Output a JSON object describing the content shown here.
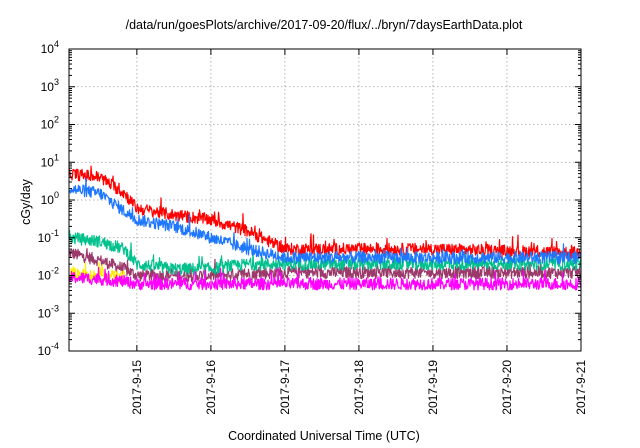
{
  "chart_data": {
    "type": "line",
    "title": "/data/run/goesPlots/archive/2017-09-20/flux/../bryn/7daysEarthData.plot",
    "xlabel": "Coordinated Universal Time (UTC)",
    "ylabel": "cGy/day",
    "y_scale": "log",
    "ylim": [
      0.0001,
      10000
    ],
    "xlim": [
      "2017-09-14T02:00",
      "2017-09-21T00:00"
    ],
    "y_ticks": [
      {
        "value": 0.0001,
        "base": "10",
        "exp": "-4"
      },
      {
        "value": 0.001,
        "base": "10",
        "exp": "-3"
      },
      {
        "value": 0.01,
        "base": "10",
        "exp": "-2"
      },
      {
        "value": 0.1,
        "base": "10",
        "exp": "-1"
      },
      {
        "value": 1,
        "base": "10",
        "exp": "0"
      },
      {
        "value": 10,
        "base": "10",
        "exp": "1"
      },
      {
        "value": 100,
        "base": "10",
        "exp": "2"
      },
      {
        "value": 1000,
        "base": "10",
        "exp": "3"
      },
      {
        "value": 10000,
        "base": "10",
        "exp": "4"
      }
    ],
    "x_ticks": [
      "2017-9-15",
      "2017-9-16",
      "2017-9-17",
      "2017-9-18",
      "2017-9-19",
      "2017-9-20",
      "2017-9-21"
    ],
    "grid": true,
    "legend": "none",
    "series": [
      {
        "color": "#ff0000",
        "x": [
          "2017-09-14T02:00",
          "2017-09-14T12:00",
          "2017-09-14T20:00",
          "2017-09-15T00:00",
          "2017-09-15T12:00",
          "2017-09-16T00:00",
          "2017-09-16T12:00",
          "2017-09-17T00:00",
          "2017-09-18T00:00",
          "2017-09-19T00:00",
          "2017-09-20T00:00",
          "2017-09-21T00:00"
        ],
        "values": [
          5,
          4,
          1.5,
          0.6,
          0.4,
          0.3,
          0.15,
          0.05,
          0.05,
          0.05,
          0.045,
          0.04
        ]
      },
      {
        "color": "#1f77ff",
        "x": [
          "2017-09-14T02:00",
          "2017-09-14T12:00",
          "2017-09-14T20:00",
          "2017-09-15T00:00",
          "2017-09-15T12:00",
          "2017-09-16T00:00",
          "2017-09-16T12:00",
          "2017-09-17T00:00",
          "2017-09-18T00:00",
          "2017-09-19T00:00",
          "2017-09-20T00:00",
          "2017-09-21T00:00"
        ],
        "values": [
          2,
          1.5,
          0.5,
          0.3,
          0.2,
          0.1,
          0.05,
          0.03,
          0.03,
          0.03,
          0.03,
          0.03
        ]
      },
      {
        "color": "#00c08c",
        "x": [
          "2017-09-14T02:00",
          "2017-09-14T12:00",
          "2017-09-14T20:00",
          "2017-09-15T00:00",
          "2017-09-15T12:00",
          "2017-09-16T00:00",
          "2017-09-16T12:00",
          "2017-09-17T00:00",
          "2017-09-18T00:00",
          "2017-09-19T00:00",
          "2017-09-20T00:00",
          "2017-09-21T00:00"
        ],
        "values": [
          0.1,
          0.08,
          0.05,
          0.02,
          0.015,
          0.015,
          0.02,
          0.02,
          0.02,
          0.02,
          0.02,
          0.02
        ]
      },
      {
        "color": "#ffee00",
        "x": [
          "2017-09-14T02:00",
          "2017-09-14T08:00",
          "2017-09-14T14:00",
          "2017-09-14T20:00"
        ],
        "values": [
          0.012,
          0.01,
          0.01,
          0.009
        ]
      },
      {
        "color": "#9b3a6a",
        "x": [
          "2017-09-14T02:00",
          "2017-09-14T12:00",
          "2017-09-14T20:00",
          "2017-09-15T00:00",
          "2017-09-16T00:00",
          "2017-09-17T00:00",
          "2017-09-18T00:00",
          "2017-09-19T00:00",
          "2017-09-20T00:00",
          "2017-09-21T00:00"
        ],
        "values": [
          0.04,
          0.025,
          0.015,
          0.01,
          0.01,
          0.012,
          0.012,
          0.012,
          0.012,
          0.012
        ]
      },
      {
        "color": "#ff00ff",
        "x": [
          "2017-09-14T02:00",
          "2017-09-14T12:00",
          "2017-09-14T20:00",
          "2017-09-15T00:00",
          "2017-09-16T00:00",
          "2017-09-17T00:00",
          "2017-09-18T00:00",
          "2017-09-19T00:00",
          "2017-09-20T00:00",
          "2017-09-21T00:00"
        ],
        "values": [
          0.009,
          0.008,
          0.007,
          0.006,
          0.006,
          0.006,
          0.006,
          0.006,
          0.006,
          0.006
        ]
      }
    ]
  }
}
